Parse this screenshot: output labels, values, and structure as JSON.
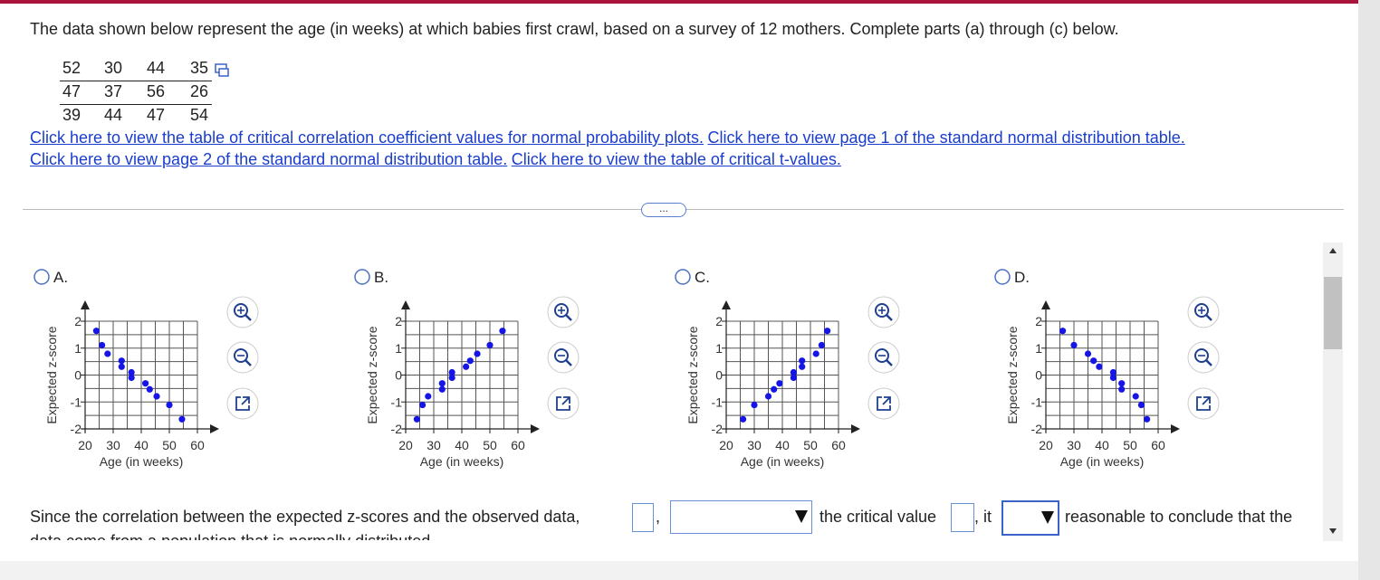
{
  "question": "The data shown below represent the age (in weeks) at which babies first crawl, based on a survey of 12 mothers. Complete parts (a) through (c) below.",
  "data_table": {
    "rows": [
      [
        52,
        30,
        44,
        35
      ],
      [
        47,
        37,
        56,
        26
      ],
      [
        39,
        44,
        47,
        54
      ]
    ]
  },
  "links": [
    "Click here to view the table of critical correlation coefficient values for normal probability plots.",
    "Click here to view page 1 of the standard normal distribution table.",
    "Click here to view page 2 of the standard normal distribution table.",
    "Click here to view the table of critical t-values."
  ],
  "more_button": "...",
  "chart_data": [
    {
      "type": "scatter",
      "label": "A.",
      "xlabel": "Age (in weeks)",
      "ylabel": "Expected z-score",
      "color": "#1515e6",
      "x": [
        24,
        26,
        28,
        33,
        33,
        36.5,
        36.5,
        41.5,
        43,
        45.5,
        50,
        54.5
      ],
      "values": [
        1.64,
        1.11,
        0.79,
        0.53,
        0.31,
        0.1,
        -0.1,
        -0.31,
        -0.53,
        -0.79,
        -1.11,
        -1.64
      ],
      "xlim": [
        20,
        60
      ],
      "ylim": [
        -2,
        2
      ],
      "xticks": [
        20,
        30,
        40,
        50,
        60
      ],
      "yticks": [
        -2,
        -1,
        0,
        1,
        2
      ],
      "xgrid": [
        20,
        25,
        30,
        35,
        40,
        45,
        50,
        55,
        60
      ],
      "ygrid": [
        -2,
        -1.5,
        -1,
        -0.5,
        0,
        0.5,
        1,
        1.5,
        2
      ]
    },
    {
      "type": "scatter",
      "label": "B.",
      "xlabel": "Age (in weeks)",
      "ylabel": "Expected z-score",
      "color": "#1515e6",
      "x": [
        24,
        26,
        28,
        33,
        33,
        36.5,
        36.5,
        41.5,
        43,
        45.5,
        50,
        54.5
      ],
      "values": [
        -1.64,
        -1.11,
        -0.79,
        -0.53,
        -0.31,
        -0.1,
        0.1,
        0.31,
        0.53,
        0.79,
        1.11,
        1.64
      ],
      "xlim": [
        20,
        60
      ],
      "ylim": [
        -2,
        2
      ],
      "xticks": [
        20,
        30,
        40,
        50,
        60
      ],
      "yticks": [
        -2,
        -1,
        0,
        1,
        2
      ],
      "xgrid": [
        20,
        25,
        30,
        35,
        40,
        45,
        50,
        55,
        60
      ],
      "ygrid": [
        -2,
        -1.5,
        -1,
        -0.5,
        0,
        0.5,
        1,
        1.5,
        2
      ]
    },
    {
      "type": "scatter",
      "label": "C.",
      "xlabel": "Age (in weeks)",
      "ylabel": "Expected z-score",
      "color": "#1515e6",
      "x": [
        26,
        30,
        35,
        37,
        39,
        44,
        44,
        47,
        47,
        52,
        54,
        56
      ],
      "values": [
        -1.64,
        -1.11,
        -0.79,
        -0.53,
        -0.31,
        -0.1,
        0.1,
        0.31,
        0.53,
        0.79,
        1.11,
        1.64
      ],
      "xlim": [
        20,
        60
      ],
      "ylim": [
        -2,
        2
      ],
      "xticks": [
        20,
        30,
        40,
        50,
        60
      ],
      "yticks": [
        -2,
        -1,
        0,
        1,
        2
      ],
      "xgrid": [
        20,
        25,
        30,
        35,
        40,
        45,
        50,
        55,
        60
      ],
      "ygrid": [
        -2,
        -1.5,
        -1,
        -0.5,
        0,
        0.5,
        1,
        1.5,
        2
      ]
    },
    {
      "type": "scatter",
      "label": "D.",
      "xlabel": "Age (in weeks)",
      "ylabel": "Expected z-score",
      "color": "#1515e6",
      "x": [
        26,
        30,
        35,
        37,
        39,
        44,
        44,
        47,
        47,
        52,
        54,
        56
      ],
      "values": [
        1.64,
        1.11,
        0.79,
        0.53,
        0.31,
        0.1,
        -0.1,
        -0.31,
        -0.53,
        -0.79,
        -1.11,
        -1.64
      ],
      "xlim": [
        20,
        60
      ],
      "ylim": [
        -2,
        2
      ],
      "xticks": [
        20,
        30,
        40,
        50,
        60
      ],
      "yticks": [
        -2,
        -1,
        0,
        1,
        2
      ],
      "xgrid": [
        20,
        25,
        30,
        35,
        40,
        45,
        50,
        55,
        60
      ],
      "ygrid": [
        -2,
        -1.5,
        -1,
        -0.5,
        0,
        0.5,
        1,
        1.5,
        2
      ]
    }
  ],
  "answer_text": [
    "Since the correlation between the expected z-scores and the observed data,",
    ",",
    "the critical value",
    ", it",
    "reasonable to conclude that the",
    "data come from a population that is normally distributed."
  ]
}
